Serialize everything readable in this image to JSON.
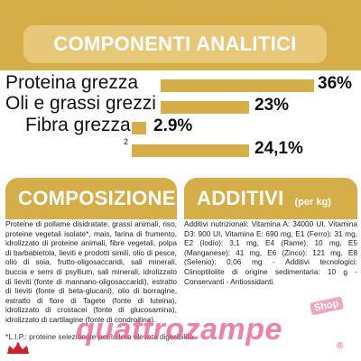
{
  "analytic_components": {
    "title": "COMPONENTI ANALITICI",
    "rows": [
      {
        "label": "Proteina grezza",
        "value": "36%",
        "fraction": 0.36
      },
      {
        "label": "Oli e grassi grezzi",
        "value": "23%",
        "fraction": 0.23
      },
      {
        "label": "Fibra grezza",
        "value": "2.9%",
        "fraction": 0.029
      },
      {
        "label": "",
        "superscript": "2",
        "value": "24,1%",
        "fraction": 0.241
      }
    ],
    "bar_color": "#d6ae48"
  },
  "composition": {
    "title": "COMPOSIZIONE",
    "text": "Proteine di pollame disidratate, grassi animali, riso, proteine vegetali isolate*, mais, farina di frumento, idrolizzato di proteine animali, fibre vegetali, polpa di barbabietola, lieviti e prodotti simili, olio di pesce, olio di soia, frutto-oligosaccaridi, sali minerali, buccia e semi di psyllium, sali minerali, idrolizzato di lieviti (fonte di mannano-oligosaccaridi), estratto di lieviti (fonte di beta-glucani), olio di borragine, estratto di fiore di Tagete (fonte di luteina), idrolizzato di crostacei (fonte di glucosamina), idrolizzato di cartilagine (fonte di condroitina)."
  },
  "additives": {
    "title": "ADDITIVI",
    "unit": "(per kg)",
    "text": "Additivi nutrizionali: Vitamina A: 34000 UI, Vitamina D3: 900 UI, Vitamina E: 690 mg, E1 (Ferro): 31 mg, E2 (Iodio): 3,1 mg, E4 (Rame): 10 mg, E5 (Manganese): 41 mg, E6 (Zinco): 121 mg, E8 (Selenio): 0,06 mg - Additivi tecnologici: Clinoptilolite di origine sedimentaria: 10 g - Conservanti - Antiossidanti."
  },
  "footer": {
    "note": "*L.I.P.: proteine selezionate per la loro elevata digeribilità",
    "watermark": "quattrozampe",
    "shop_badge": "Shop",
    "registered": "®"
  },
  "colors": {
    "accent": "#d6ae48",
    "accent_light": "#e6c878",
    "watermark": "#e65a87"
  }
}
